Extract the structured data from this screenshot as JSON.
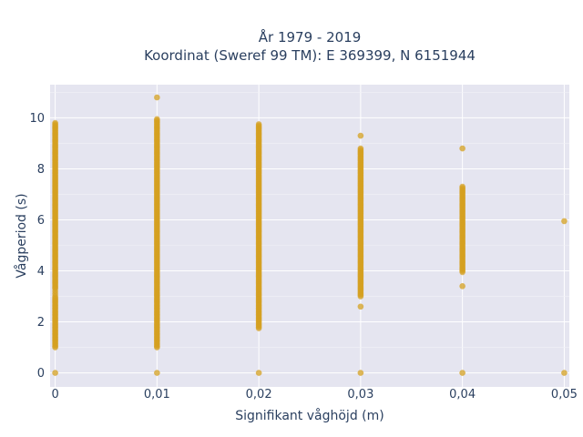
{
  "chart_data": {
    "type": "scatter",
    "title_line1": "År 1979 - 2019",
    "title_line2": "Koordinat (Sweref 99 TM): E 369399, N 6151944",
    "xlabel": "Signifikant våghöjd (m)",
    "ylabel": "Vågperiod (s)",
    "x_ticks": [
      "0",
      "0,01",
      "0,02",
      "0,03",
      "0,04",
      "0,05"
    ],
    "x_tick_values": [
      0,
      0.01,
      0.02,
      0.03,
      0.04,
      0.05
    ],
    "y_ticks": [
      "0",
      "2",
      "4",
      "6",
      "8",
      "10"
    ],
    "y_tick_values": [
      0,
      2,
      4,
      6,
      8,
      10
    ],
    "xlim": [
      -0.0005,
      0.0505
    ],
    "ylim": [
      -0.55,
      11.3
    ],
    "grid": true,
    "legend": "none",
    "marker_color": "#d4a020",
    "plot_bg": "#e5e5f0",
    "point_groups": [
      {
        "x": 0.0,
        "dense_ranges": [
          [
            1.0,
            3.0
          ],
          [
            3.3,
            9.8
          ]
        ],
        "points": [
          0,
          3.1,
          3.2
        ]
      },
      {
        "x": 0.01,
        "dense_ranges": [
          [
            1.0,
            9.95
          ]
        ],
        "points": [
          0,
          10.8
        ]
      },
      {
        "x": 0.02,
        "dense_ranges": [
          [
            1.75,
            9.75
          ]
        ],
        "points": [
          0
        ]
      },
      {
        "x": 0.03,
        "dense_ranges": [
          [
            3.0,
            8.8
          ]
        ],
        "points": [
          0,
          2.6,
          9.3
        ]
      },
      {
        "x": 0.04,
        "dense_ranges": [
          [
            3.95,
            7.3
          ]
        ],
        "points": [
          0,
          3.4,
          8.8
        ]
      },
      {
        "x": 0.05,
        "dense_ranges": [],
        "points": [
          0,
          5.95
        ]
      }
    ]
  }
}
